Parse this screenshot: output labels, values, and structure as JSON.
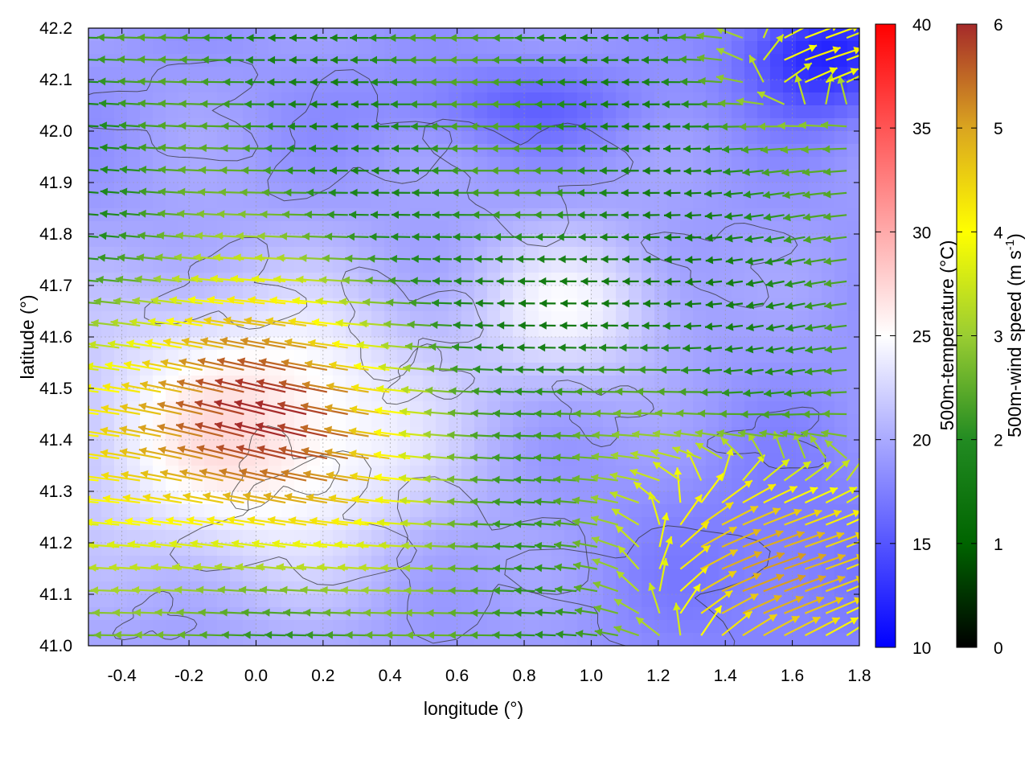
{
  "chart_data": {
    "type": "heatmap",
    "xlabel": "longitude (°)",
    "ylabel": "latitude (°)",
    "xlim": [
      -0.5,
      1.8
    ],
    "ylim": [
      41.0,
      42.2
    ],
    "xticks": [
      "-0.4",
      "-0.2",
      "0.0",
      "0.2",
      "0.4",
      "0.6",
      "0.8",
      "1.0",
      "1.2",
      "1.4",
      "1.6",
      "1.8"
    ],
    "yticks": [
      "41.0",
      "41.1",
      "41.2",
      "41.3",
      "41.4",
      "41.5",
      "41.6",
      "41.7",
      "41.8",
      "41.9",
      "42.0",
      "42.1",
      "42.2"
    ],
    "grid": true,
    "temperature_colorbar": {
      "label": "500m-temperature (°C)",
      "range": [
        10,
        40
      ],
      "ticks": [
        "10",
        "15",
        "20",
        "25",
        "30",
        "35",
        "40"
      ],
      "colors": [
        "#0000ff",
        "#ffffff",
        "#ff0000"
      ]
    },
    "wind_colorbar": {
      "label": "500m-wind speed (m s",
      "label_sup": "-1",
      "label_close": ")",
      "range": [
        0,
        6
      ],
      "ticks": [
        "0",
        "1",
        "2",
        "3",
        "4",
        "5",
        "6"
      ],
      "colors": [
        "#000000",
        "#006400",
        "#228b22",
        "#9acd32",
        "#ffff00",
        "#daa520",
        "#a52a2a"
      ]
    },
    "contour_color": "#333333",
    "field_regions": [
      {
        "area": "west-central (-0.5 to 0.5, 41.1 to 41.7)",
        "temperature": 27,
        "wind_speed": 6,
        "wind_direction": "from east-southeast"
      },
      {
        "area": "north strip (41.8 to 42.2)",
        "temperature": 19,
        "wind_speed": 2,
        "wind_direction": "from east"
      },
      {
        "area": "central plateau (0.6 to 1.2, 41.5 to 41.8)",
        "temperature": 24,
        "wind_speed": 1,
        "wind_direction": "from east"
      },
      {
        "area": "southeast (1.0 to 1.8, 41.0 to 41.4)",
        "temperature": 17,
        "wind_speed": 5,
        "wind_direction": "from southwest"
      },
      {
        "area": "northeast corner (1.5 to 1.8, 42.0 to 42.2)",
        "temperature": 12,
        "wind_speed": 4,
        "wind_direction": "from southwest"
      }
    ]
  }
}
